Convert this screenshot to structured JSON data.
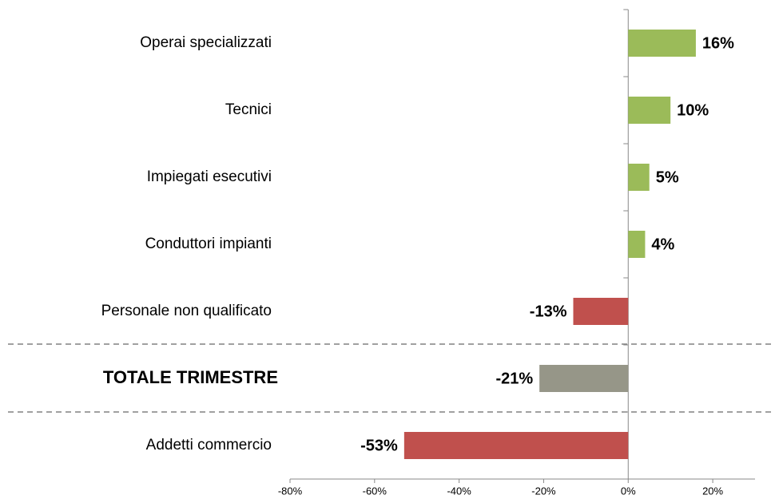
{
  "chart_data": {
    "type": "bar",
    "orientation": "horizontal",
    "categories": [
      "Operai specializzati",
      "Tecnici",
      "Impiegati esecutivi",
      "Conduttori impianti",
      "Personale non qualificato",
      "TOTALE TRIMESTRE",
      "Addetti commercio"
    ],
    "values": [
      16,
      10,
      5,
      4,
      -13,
      -21,
      -53
    ],
    "value_labels": [
      "16%",
      "10%",
      "5%",
      "4%",
      "-13%",
      "-21%",
      "-53%"
    ],
    "colors": [
      "#9bbb59",
      "#9bbb59",
      "#9bbb59",
      "#9bbb59",
      "#c0504d",
      "#969688",
      "#c0504d"
    ],
    "xlim": [
      -80,
      30
    ],
    "xticks": [
      {
        "value": -80,
        "label": "-80%"
      },
      {
        "value": -60,
        "label": "-60%"
      },
      {
        "value": -40,
        "label": "-40%"
      },
      {
        "value": -20,
        "label": "-20%"
      },
      {
        "value": 0,
        "label": "0%"
      },
      {
        "value": 20,
        "label": "20%"
      }
    ],
    "grid": false
  }
}
